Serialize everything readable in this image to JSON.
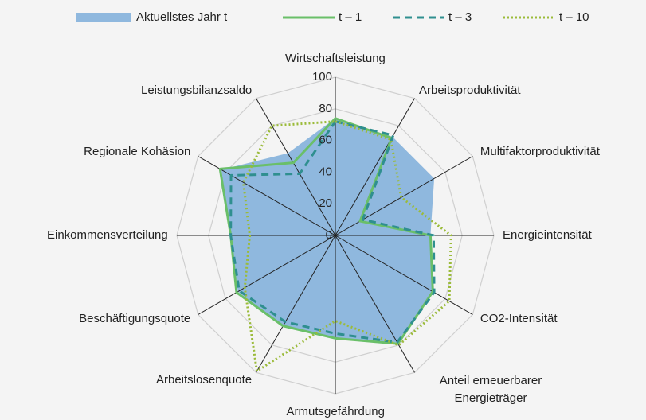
{
  "chart_data": {
    "type": "radar",
    "categories": [
      "Wirtschaftsleistung",
      "Arbeitsproduktivität",
      "Multifaktorproduktivität",
      "Energieintensität",
      "CO2-Intensität",
      "Anteil erneuerbarer Energieträger",
      "Armutsgefährdung",
      "Arbeitslosenquote",
      "Beschäftigungsquote",
      "Einkommensverteilung",
      "Regionale Kohäsion",
      "Leistungsbilanzsaldo"
    ],
    "series": [
      {
        "name": "Aktuellstes Jahr t",
        "color": "#8fb8de",
        "style": "area",
        "values": [
          74,
          72,
          72,
          60,
          71,
          78,
          65,
          66,
          71,
          66,
          83,
          60
        ]
      },
      {
        "name": "t – 1",
        "color": "#6abf69",
        "style": "solid",
        "values": [
          74,
          71,
          18,
          60,
          71,
          79,
          65,
          66,
          72,
          66,
          84,
          53
        ]
      },
      {
        "name": "t – 3",
        "color": "#2f8f8f",
        "style": "dashed",
        "values": [
          72,
          73,
          20,
          62,
          72,
          78,
          62,
          63,
          70,
          66,
          76,
          45
        ]
      },
      {
        "name": "t – 10",
        "color": "#9bbb3a",
        "style": "dotted",
        "values": [
          72,
          70,
          48,
          73,
          83,
          80,
          54,
          99,
          66,
          54,
          67,
          80
        ]
      }
    ],
    "rlim": [
      0,
      100
    ],
    "rticks": [
      0,
      20,
      40,
      60,
      80,
      100
    ],
    "grid": true,
    "legend": "top"
  }
}
